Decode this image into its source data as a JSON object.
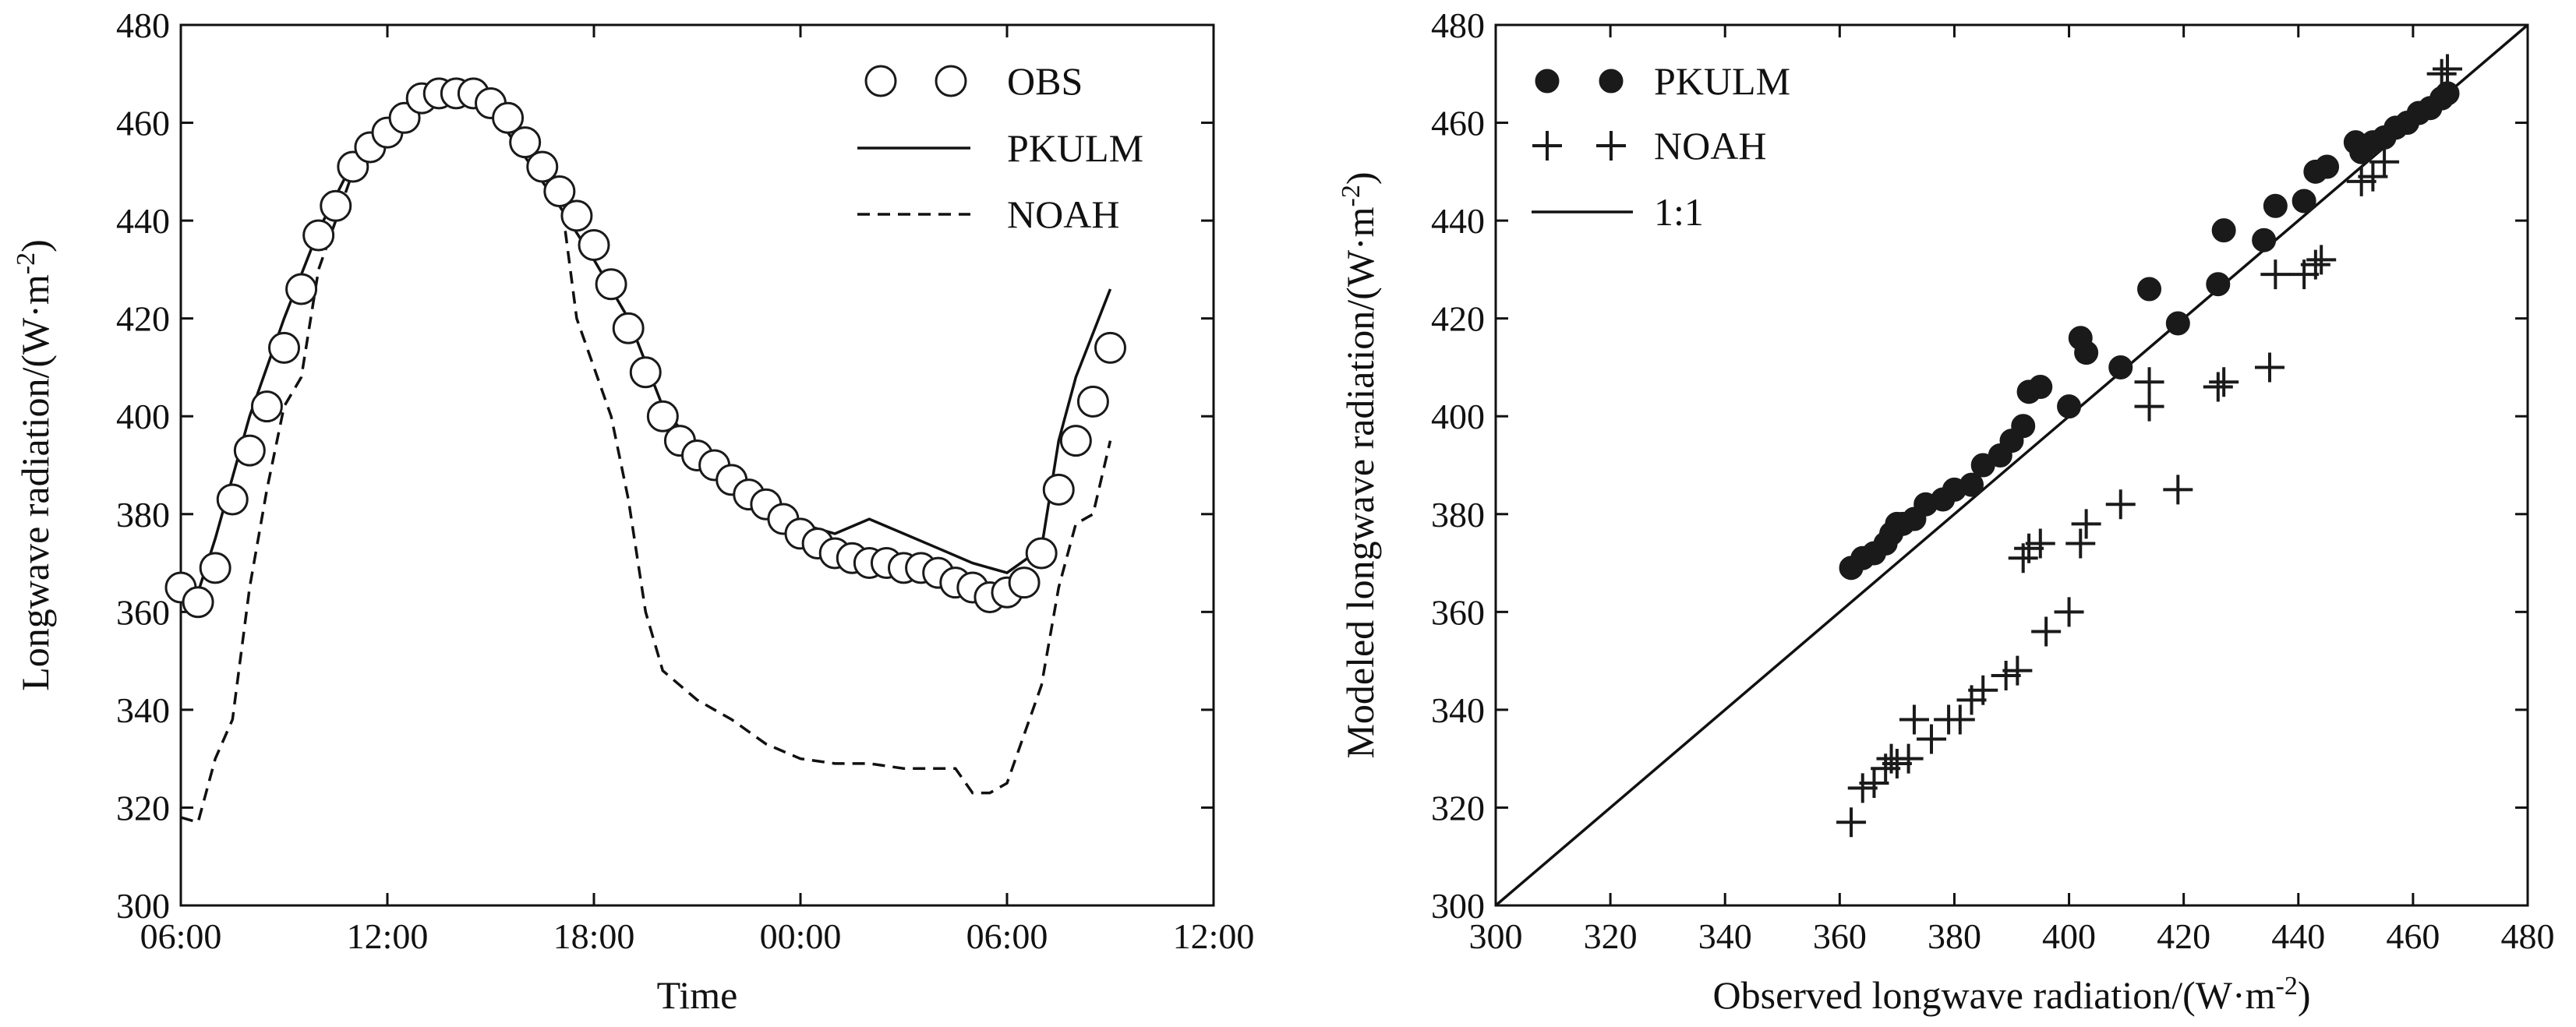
{
  "chart_data": [
    {
      "type": "line",
      "xlabel": "Time",
      "ylabel": "Longwave radiation/(W·m⁻²)",
      "ylabel_base": "Longwave radiation/(W·m",
      "ylabel_sup": "-2",
      "ylabel_end": ")",
      "x_ticks": [
        "06:00",
        "12:00",
        "18:00",
        "00:00",
        "06:00",
        "12:00"
      ],
      "x_unit": "hours since first tick",
      "xlim": [
        0,
        30
      ],
      "ylim": [
        300,
        480
      ],
      "y_ticks": [
        300,
        320,
        340,
        360,
        380,
        400,
        420,
        440,
        460,
        480
      ],
      "legend_position": "top-right",
      "legend": [
        "OBS",
        "PKULM",
        "NOAH"
      ],
      "series": [
        {
          "name": "OBS",
          "style": "open-circle",
          "x": [
            0,
            0.5,
            1,
            1.5,
            2,
            2.5,
            3,
            3.5,
            4,
            4.5,
            5,
            5.5,
            6,
            6.5,
            7,
            7.5,
            8,
            8.5,
            9,
            9.5,
            10,
            10.5,
            11,
            11.5,
            12,
            12.5,
            13,
            13.5,
            14,
            14.5,
            15,
            15.5,
            16,
            16.5,
            17,
            17.5,
            18,
            18.5,
            19,
            19.5,
            20,
            20.5,
            21,
            21.5,
            22,
            22.5,
            23,
            23.5,
            24,
            24.5,
            25,
            25.5,
            26,
            26.5,
            27
          ],
          "values": [
            365,
            362,
            369,
            383,
            393,
            402,
            414,
            426,
            437,
            443,
            451,
            455,
            458,
            461,
            465,
            466,
            466,
            466,
            464,
            461,
            456,
            451,
            446,
            441,
            435,
            427,
            418,
            409,
            400,
            395,
            392,
            390,
            387,
            384,
            382,
            379,
            376,
            374,
            372,
            371,
            370,
            370,
            369,
            369,
            368,
            366,
            365,
            363,
            364,
            366,
            372,
            385,
            395,
            403,
            414
          ]
        },
        {
          "name": "PKULM",
          "style": "solid",
          "x": [
            0,
            0.5,
            1,
            2,
            3,
            4,
            5,
            6,
            7,
            7.5,
            8,
            9,
            10,
            11,
            12,
            13,
            14,
            15,
            16,
            17,
            18,
            19,
            20,
            21,
            22,
            23,
            24,
            25,
            25.5,
            26,
            27
          ],
          "values": [
            368,
            364,
            375,
            400,
            420,
            438,
            452,
            460,
            465,
            468,
            468,
            463,
            453,
            443,
            432,
            420,
            402,
            393,
            386,
            381,
            378,
            376,
            379,
            376,
            373,
            370,
            368,
            373,
            395,
            408,
            426
          ]
        },
        {
          "name": "NOAH",
          "style": "dashed",
          "x": [
            0,
            0.5,
            1,
            1.5,
            2,
            2.5,
            3,
            3.5,
            4,
            5,
            6,
            7,
            8,
            9,
            10,
            11,
            11.5,
            12,
            12.5,
            13,
            13.5,
            14,
            15,
            16,
            17,
            18,
            19,
            20,
            21,
            22,
            22.5,
            23,
            23.5,
            24,
            24.5,
            25,
            25.5,
            26,
            26.5,
            27
          ],
          "values": [
            318,
            317,
            330,
            338,
            365,
            385,
            402,
            408,
            430,
            450,
            458,
            464,
            466,
            464,
            457,
            447,
            420,
            410,
            400,
            383,
            360,
            348,
            342,
            338,
            333,
            330,
            329,
            329,
            328,
            328,
            328,
            323,
            323,
            325,
            335,
            345,
            365,
            378,
            380,
            395
          ]
        }
      ]
    },
    {
      "type": "scatter",
      "xlabel": "Observed longwave radiation/(W·m⁻²)",
      "xlabel_base": "Observed longwave radiation/(W·m",
      "xlabel_sup": "-2",
      "xlabel_end": ")",
      "ylabel": "Modeled longwave radiation/(W·m⁻²)",
      "ylabel_base": "Modeled longwave radiation/(W·m",
      "ylabel_sup": "-2",
      "ylabel_end": ")",
      "xlim": [
        300,
        480
      ],
      "ylim": [
        300,
        480
      ],
      "x_ticks": [
        300,
        320,
        340,
        360,
        380,
        400,
        420,
        440,
        460,
        480
      ],
      "y_ticks": [
        300,
        320,
        340,
        360,
        380,
        400,
        420,
        440,
        460,
        480
      ],
      "legend_position": "top-left",
      "legend": [
        "PKULM",
        "NOAH",
        "1:1"
      ],
      "reference_line": {
        "name": "1:1",
        "from": [
          300,
          300
        ],
        "to": [
          480,
          480
        ]
      },
      "series": [
        {
          "name": "PKULM",
          "style": "filled-circle",
          "x": [
            362,
            364,
            366,
            368,
            369,
            370,
            371,
            373,
            375,
            378,
            380,
            383,
            385,
            388,
            390,
            392,
            393,
            395,
            400,
            402,
            403,
            409,
            414,
            419,
            426,
            427,
            434,
            436,
            441,
            443,
            445,
            450,
            451,
            453,
            455,
            457,
            459,
            461,
            463,
            465,
            466
          ],
          "y": [
            369,
            371,
            372,
            374,
            376,
            378,
            378,
            379,
            382,
            383,
            385,
            386,
            390,
            392,
            395,
            398,
            405,
            406,
            402,
            416,
            413,
            410,
            426,
            419,
            427,
            438,
            436,
            443,
            444,
            450,
            451,
            456,
            454,
            456,
            457,
            459,
            460,
            462,
            463,
            465,
            466
          ]
        },
        {
          "name": "NOAH",
          "style": "plus",
          "x": [
            362,
            364,
            366,
            368,
            369,
            370,
            372,
            373,
            376,
            379,
            381,
            383,
            385,
            389,
            391,
            392,
            393,
            395,
            396,
            400,
            402,
            403,
            409,
            414,
            414,
            419,
            426,
            427,
            435,
            436,
            441,
            443,
            444,
            451,
            453,
            455,
            465,
            466
          ],
          "y": [
            317,
            324,
            325,
            328,
            330,
            329,
            330,
            338,
            334,
            338,
            338,
            342,
            344,
            347,
            348,
            371,
            373,
            374,
            356,
            360,
            374,
            378,
            382,
            402,
            407,
            385,
            406,
            407,
            410,
            429,
            429,
            431,
            432,
            448,
            449,
            452,
            470,
            471
          ]
        }
      ]
    }
  ]
}
